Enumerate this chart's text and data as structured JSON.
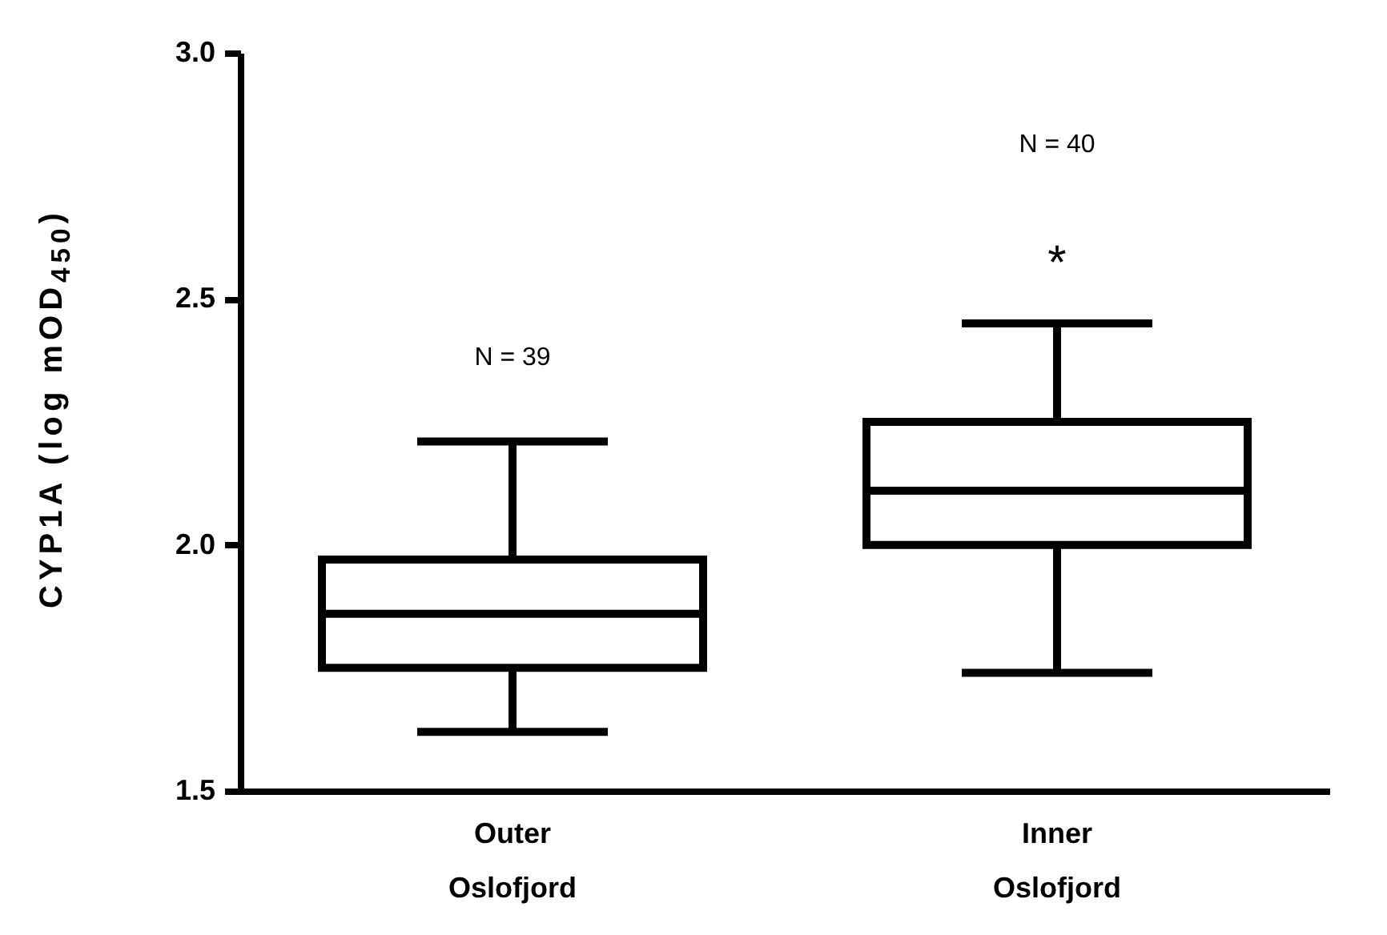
{
  "chart_data": {
    "type": "box",
    "ylabel": "CYP1A (log mOD$_{450}$)",
    "categories": [
      "Outer Oslofjord",
      "Inner Oslofjord"
    ],
    "boxes": [
      {
        "low": 1.62,
        "q1": 1.75,
        "median": 1.86,
        "q3": 1.97,
        "high": 2.21
      },
      {
        "low": 1.74,
        "q1": 2.0,
        "median": 2.11,
        "q3": 2.25,
        "high": 2.45
      }
    ],
    "ylim": [
      1.5,
      3.0
    ],
    "yticks": [
      {
        "value": 1.5,
        "label": "1.5"
      },
      {
        "value": 2,
        "label": "2.0"
      },
      {
        "value": 2.5,
        "label": "2.5"
      },
      {
        "value": 3,
        "label": "3.0"
      }
    ],
    "grid": false,
    "annotations": [
      "N = 39",
      "N = 40",
      "*"
    ]
  }
}
